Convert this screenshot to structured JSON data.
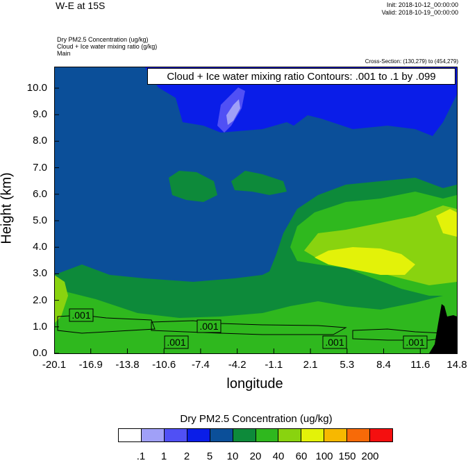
{
  "header": {
    "main_title": "W-E at 15S",
    "init": "Init: 2018-10-12_00:00:00",
    "valid": "Valid: 2018-10-19_00:00:00",
    "var1": "Dry PM2.5 Concentration   (ug/kg)",
    "var2": "Cloud + Ice water mixing ratio   (g/kg)",
    "var3": "Main",
    "cross_section": "Cross-Section: (130,279) to (454,279)"
  },
  "chart_data": {
    "type": "heatmap",
    "contour_info": "Cloud + Ice water mixing ratio Contours: .001 to .1 by .099",
    "xlabel": "longitude",
    "ylabel": "Height (km)",
    "x_ticks": [
      "-20.1",
      "-16.9",
      "-13.8",
      "-10.6",
      "-7.4",
      "-4.2",
      "-1.1",
      "2.1",
      "5.3",
      "8.4",
      "11.6",
      "14.8"
    ],
    "y_ticks": [
      "0.0",
      "1.0",
      "2.0",
      "3.0",
      "4.0",
      "5.0",
      "6.0",
      "7.0",
      "8.0",
      "9.0",
      "10.0"
    ],
    "xlim": [
      -20.1,
      14.8
    ],
    "ylim": [
      0.0,
      10.9
    ],
    "contour_labels": [
      ".001",
      ".001",
      ".001",
      ".001",
      ".001"
    ],
    "colorbar": {
      "title": "Dry PM2.5 Concentration  (ug/kg)",
      "levels": [
        ".1",
        "1",
        "2",
        "5",
        "10",
        "20",
        "40",
        "60",
        "100",
        "150",
        "200"
      ],
      "colors": [
        "#ffffff",
        "#a0a0f7",
        "#5050f5",
        "#0a1de8",
        "#0b4f99",
        "#0d8a3a",
        "#2fb81e",
        "#89d30f",
        "#e3f209",
        "#f7b800",
        "#f76a08",
        "#f50f0f"
      ]
    }
  }
}
